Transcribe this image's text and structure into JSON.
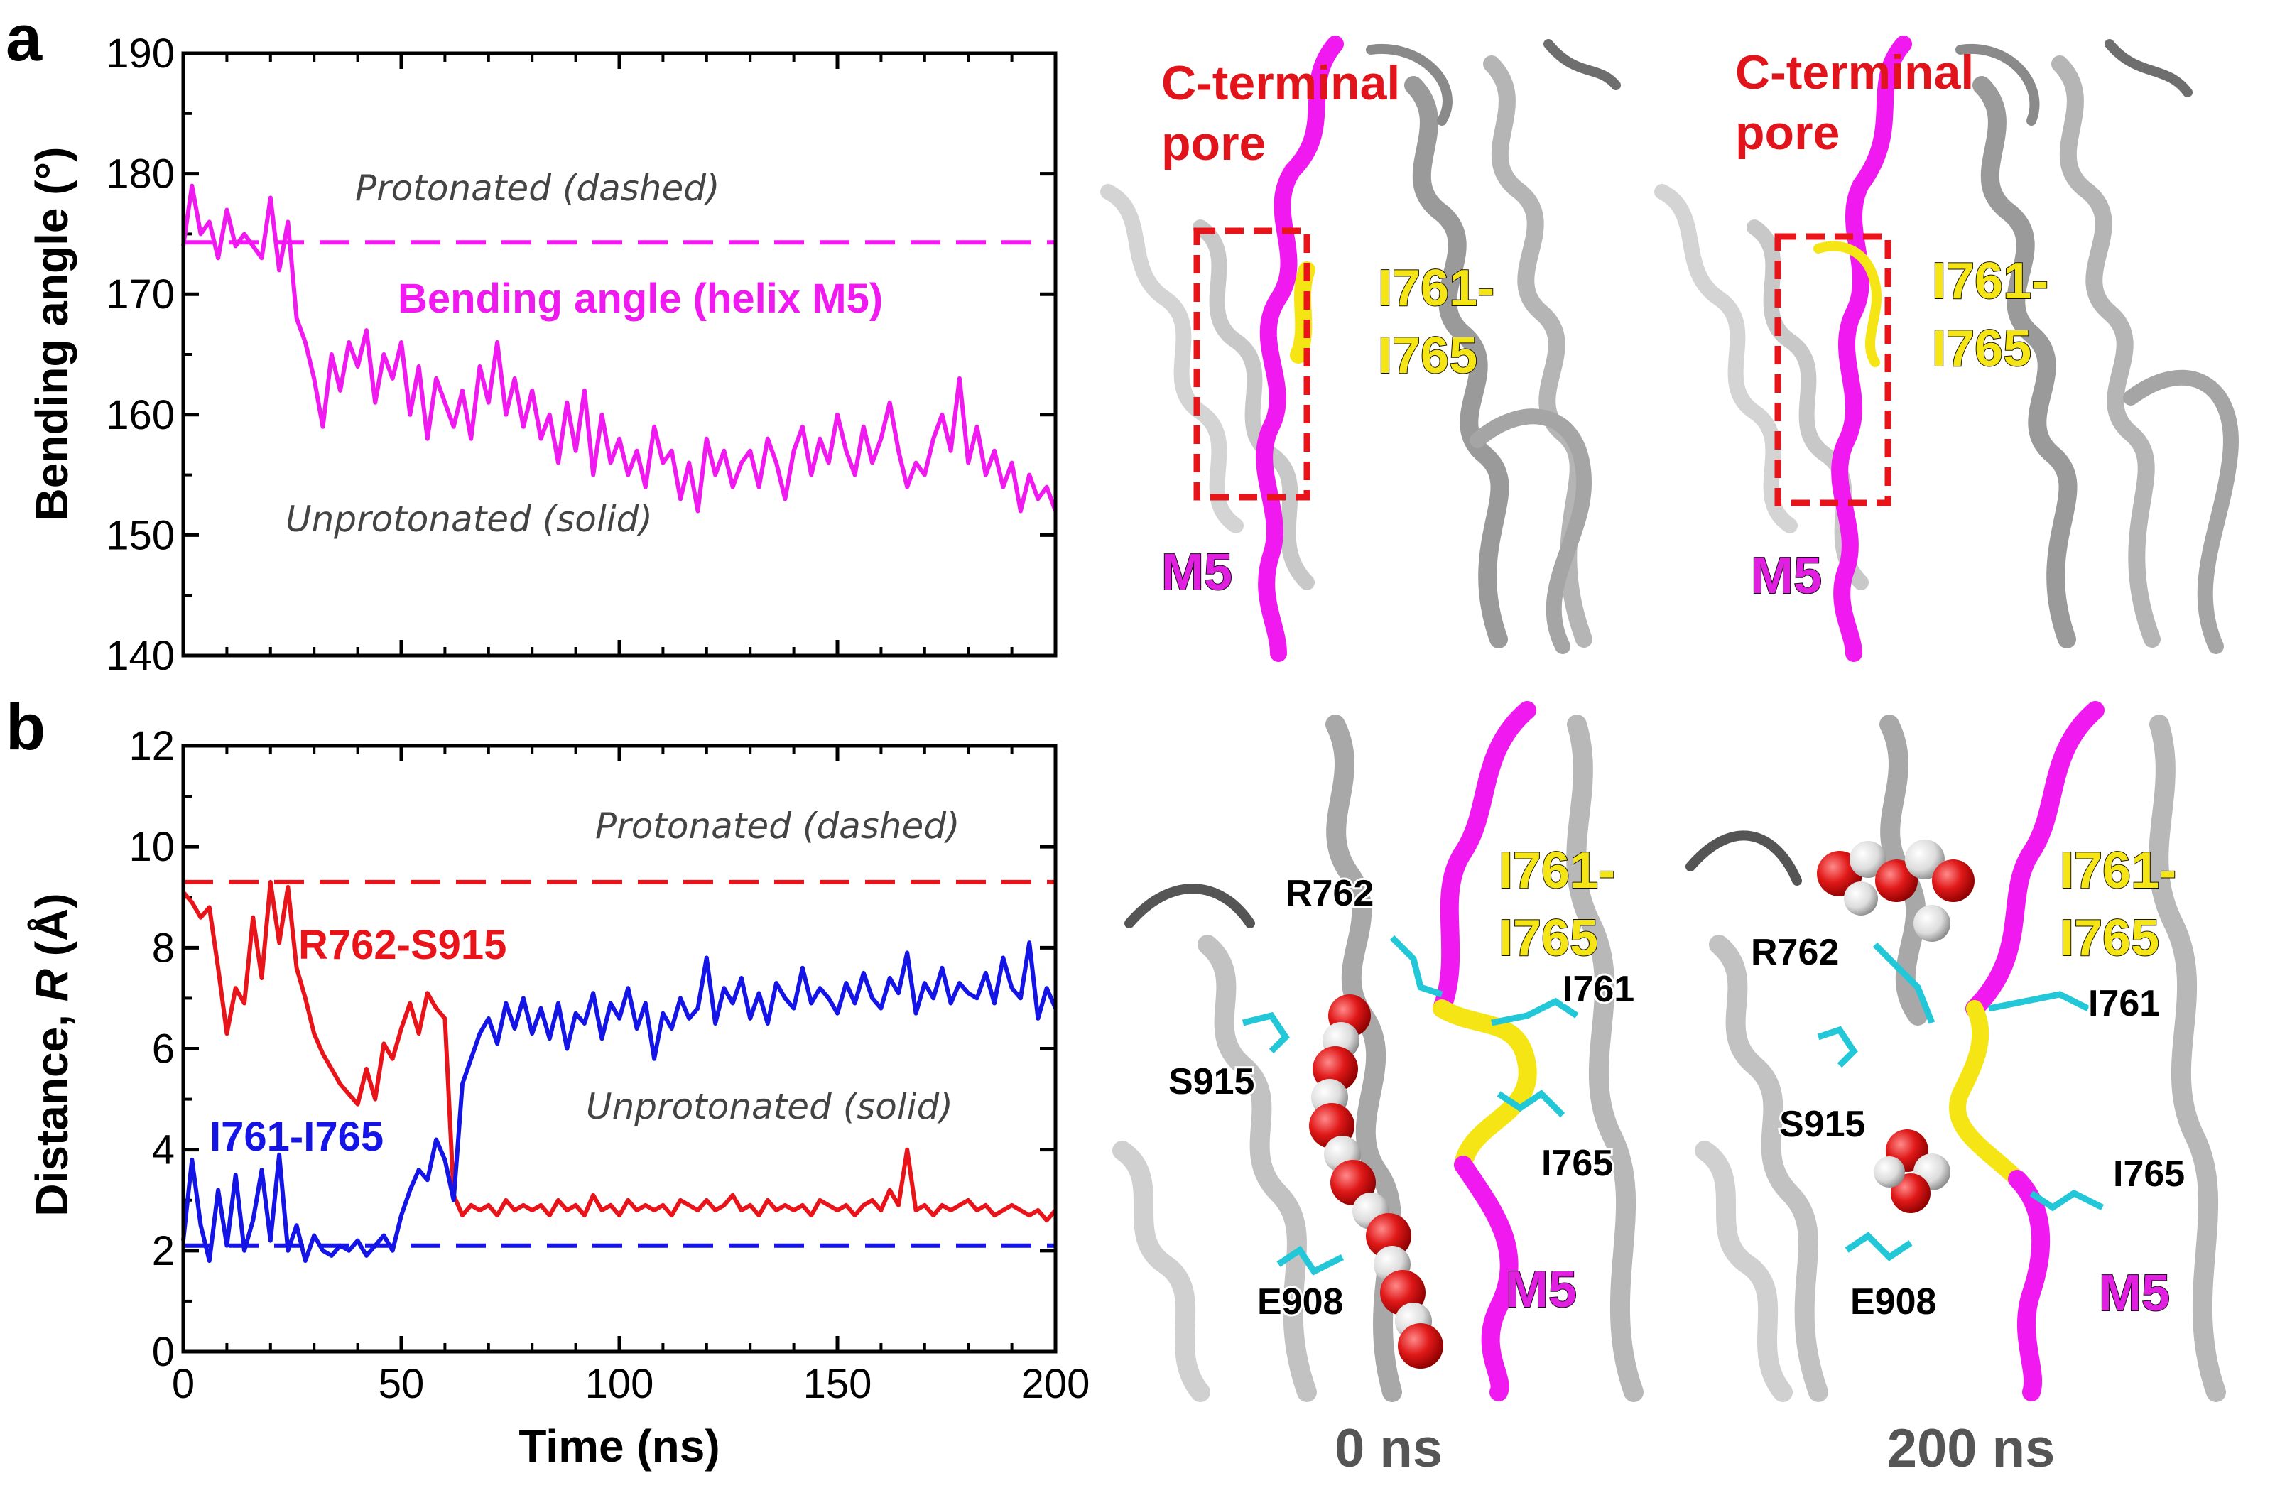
{
  "panels": {
    "a": {
      "letter": "a",
      "ylabel": "Bending angle (°)",
      "yticks": [
        "140",
        "150",
        "160",
        "170",
        "180",
        "190"
      ],
      "note_protonated": "Protonated (dashed)",
      "note_unprotonated": "Unprotonated (solid)",
      "series_label": "Bending angle (helix M5)"
    },
    "b": {
      "letter": "b",
      "ylabel_main": "Distance, ",
      "ylabel_var": "R",
      "ylabel_unit": " (Å)",
      "yticks": [
        "0",
        "2",
        "4",
        "6",
        "8",
        "10",
        "12"
      ],
      "xticks": [
        "0",
        "50",
        "100",
        "150",
        "200"
      ],
      "xlabel": "Time (ns)",
      "note_protonated": "Protonated (dashed)",
      "note_unprotonated": "Unprotonated (solid)",
      "label_red": "R762-S915",
      "label_blue": "I761-I765"
    }
  },
  "structures": {
    "pore_line1": "C-terminal",
    "pore_line2": "pore",
    "segment_line1": "I761-",
    "segment_line2": "I765",
    "helix": "M5",
    "residues": {
      "r762": "R762",
      "s915": "S915",
      "e908": "E908",
      "i761": "I761",
      "i765": "I765"
    },
    "time_left": "0 ns",
    "time_right": "200 ns"
  },
  "colors": {
    "magenta": "#f019f0",
    "red": "#e8141a",
    "blue": "#1414e6",
    "yellow": "#f5e514",
    "cyan": "#22c8d8"
  },
  "chart_data": [
    {
      "type": "line",
      "panel": "a",
      "xlim": [
        0,
        200
      ],
      "ylim": [
        140,
        190
      ],
      "ylabel": "Bending angle (°)",
      "series": [
        {
          "name": "Bending angle (helix M5)",
          "style": "solid",
          "x": [
            0,
            2,
            4,
            6,
            8,
            10,
            12,
            14,
            16,
            18,
            20,
            22,
            24,
            26,
            28,
            30,
            32,
            34,
            36,
            38,
            40,
            42,
            44,
            46,
            48,
            50,
            52,
            54,
            56,
            58,
            60,
            62,
            64,
            66,
            68,
            70,
            72,
            74,
            76,
            78,
            80,
            82,
            84,
            86,
            88,
            90,
            92,
            94,
            96,
            98,
            100,
            102,
            104,
            106,
            108,
            110,
            112,
            114,
            116,
            118,
            120,
            122,
            124,
            126,
            128,
            130,
            132,
            134,
            136,
            138,
            140,
            142,
            144,
            146,
            148,
            150,
            152,
            154,
            156,
            158,
            160,
            162,
            164,
            166,
            168,
            170,
            172,
            174,
            176,
            178,
            180,
            182,
            184,
            186,
            188,
            190,
            192,
            194,
            196,
            198,
            200
          ],
          "y": [
            174,
            179,
            175,
            176,
            173,
            177,
            174,
            175,
            174,
            173,
            178,
            172,
            176,
            168,
            166,
            163,
            159,
            165,
            162,
            166,
            164,
            167,
            161,
            165,
            163,
            166,
            160,
            164,
            158,
            163,
            161,
            159,
            162,
            158,
            164,
            161,
            166,
            160,
            163,
            159,
            162,
            158,
            160,
            156,
            161,
            157,
            162,
            155,
            160,
            156,
            158,
            155,
            157,
            154,
            159,
            156,
            157,
            153,
            156,
            152,
            158,
            155,
            157,
            154,
            156,
            157,
            154,
            158,
            156,
            153,
            157,
            159,
            155,
            158,
            156,
            160,
            157,
            155,
            159,
            156,
            158,
            161,
            157,
            154,
            156,
            155,
            158,
            160,
            157,
            163,
            156,
            159,
            155,
            157,
            154,
            156,
            152,
            155,
            153,
            154,
            152
          ]
        },
        {
          "name": "",
          "style": "dashed",
          "x": [
            0,
            200
          ],
          "y": [
            174.3,
            174.3
          ]
        }
      ]
    },
    {
      "type": "line",
      "panel": "b",
      "xlim": [
        0,
        200
      ],
      "ylim": [
        0,
        12
      ],
      "xlabel": "Time (ns)",
      "ylabel": "Distance, R (Å)",
      "series": [
        {
          "name": "R762-S915",
          "style": "solid",
          "x": [
            0,
            2,
            4,
            6,
            8,
            10,
            12,
            14,
            16,
            18,
            20,
            22,
            24,
            26,
            28,
            30,
            32,
            34,
            36,
            38,
            40,
            42,
            44,
            46,
            48,
            50,
            52,
            54,
            56,
            58,
            60,
            62,
            64,
            66,
            68,
            70,
            72,
            74,
            76,
            78,
            80,
            82,
            84,
            86,
            88,
            90,
            92,
            94,
            96,
            98,
            100,
            102,
            104,
            106,
            108,
            110,
            112,
            114,
            116,
            118,
            120,
            122,
            124,
            126,
            128,
            130,
            132,
            134,
            136,
            138,
            140,
            142,
            144,
            146,
            148,
            150,
            152,
            154,
            156,
            158,
            160,
            162,
            164,
            166,
            168,
            170,
            172,
            174,
            176,
            178,
            180,
            182,
            184,
            186,
            188,
            190,
            192,
            194,
            196,
            198,
            200
          ],
          "y": [
            9.1,
            8.9,
            8.6,
            8.8,
            7.6,
            6.3,
            7.2,
            6.9,
            8.6,
            7.4,
            9.3,
            8.1,
            9.2,
            7.6,
            7.0,
            6.3,
            5.9,
            5.6,
            5.3,
            5.1,
            4.9,
            5.6,
            5.0,
            6.1,
            5.8,
            6.4,
            6.9,
            6.3,
            7.1,
            6.8,
            6.6,
            3.1,
            2.7,
            2.9,
            2.8,
            2.9,
            2.7,
            3.0,
            2.8,
            2.9,
            2.8,
            2.9,
            2.7,
            3.0,
            2.8,
            2.9,
            2.7,
            3.1,
            2.8,
            2.9,
            2.7,
            3.0,
            2.8,
            2.9,
            2.8,
            2.9,
            2.7,
            3.0,
            2.9,
            2.8,
            3.0,
            2.8,
            2.9,
            3.1,
            2.8,
            2.9,
            2.7,
            3.0,
            2.8,
            2.9,
            2.8,
            2.9,
            2.7,
            3.0,
            2.9,
            2.8,
            2.9,
            2.7,
            2.9,
            3.0,
            2.8,
            3.2,
            2.9,
            4.0,
            2.8,
            2.9,
            2.7,
            2.9,
            2.8,
            2.9,
            3.0,
            2.8,
            2.9,
            2.7,
            2.8,
            2.9,
            2.8,
            2.7,
            2.8,
            2.6,
            2.8
          ]
        },
        {
          "name": "I761-I765",
          "style": "solid",
          "x": [
            0,
            2,
            4,
            6,
            8,
            10,
            12,
            14,
            16,
            18,
            20,
            22,
            24,
            26,
            28,
            30,
            32,
            34,
            36,
            38,
            40,
            42,
            44,
            46,
            48,
            50,
            52,
            54,
            56,
            58,
            60,
            62,
            64,
            66,
            68,
            70,
            72,
            74,
            76,
            78,
            80,
            82,
            84,
            86,
            88,
            90,
            92,
            94,
            96,
            98,
            100,
            102,
            104,
            106,
            108,
            110,
            112,
            114,
            116,
            118,
            120,
            122,
            124,
            126,
            128,
            130,
            132,
            134,
            136,
            138,
            140,
            142,
            144,
            146,
            148,
            150,
            152,
            154,
            156,
            158,
            160,
            162,
            164,
            166,
            168,
            170,
            172,
            174,
            176,
            178,
            180,
            182,
            184,
            186,
            188,
            190,
            192,
            194,
            196,
            198,
            200
          ],
          "y": [
            2.2,
            3.8,
            2.5,
            1.8,
            3.2,
            2.1,
            3.5,
            2.0,
            2.6,
            3.6,
            2.2,
            3.9,
            2.0,
            2.5,
            1.8,
            2.3,
            2.0,
            1.9,
            2.1,
            2.0,
            2.2,
            1.9,
            2.1,
            2.3,
            2.0,
            2.7,
            3.2,
            3.6,
            3.4,
            4.2,
            3.8,
            3.0,
            5.3,
            5.8,
            6.3,
            6.6,
            6.1,
            6.9,
            6.4,
            7.0,
            6.3,
            6.8,
            6.2,
            6.9,
            6.0,
            6.7,
            6.5,
            7.1,
            6.2,
            6.9,
            6.6,
            7.2,
            6.4,
            6.9,
            5.8,
            6.7,
            6.4,
            7.0,
            6.6,
            6.8,
            7.8,
            6.5,
            7.2,
            6.9,
            7.4,
            6.6,
            7.1,
            6.5,
            7.3,
            7.0,
            6.8,
            7.6,
            6.9,
            7.2,
            7.0,
            6.7,
            7.3,
            6.9,
            7.5,
            7.0,
            6.8,
            7.4,
            7.1,
            7.9,
            6.7,
            7.3,
            7.0,
            7.6,
            6.9,
            7.3,
            7.1,
            7.0,
            7.5,
            6.9,
            7.8,
            7.2,
            7.0,
            8.1,
            6.6,
            7.2,
            6.8
          ]
        },
        {
          "name": "",
          "style": "dashed",
          "x": [
            0,
            200
          ],
          "y": [
            9.3,
            9.3
          ]
        },
        {
          "name": "",
          "style": "dashed",
          "x": [
            0,
            200
          ],
          "y": [
            2.1,
            2.1
          ]
        }
      ]
    }
  ]
}
